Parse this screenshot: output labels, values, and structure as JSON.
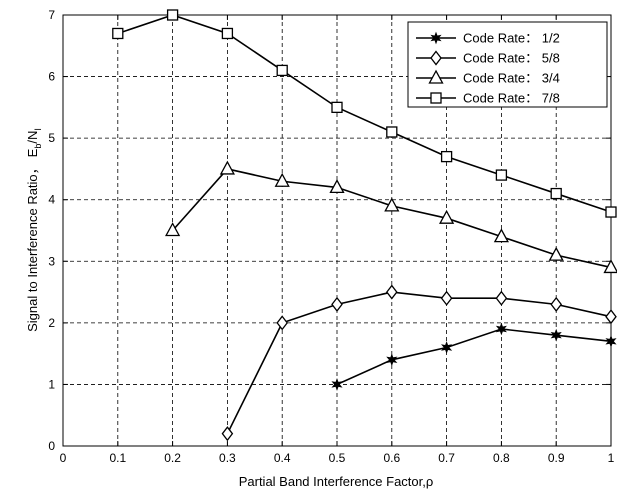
{
  "chart_data": {
    "type": "line",
    "xlabel": "Partial Band Interference Factor,ρ",
    "ylabel_main": "Signal to Interference Ratio，",
    "ylabel_symbol": {
      "E": "E",
      "b": "b",
      "slash_N": "/N",
      "I": "I"
    },
    "xlim": [
      0,
      1
    ],
    "ylim": [
      0,
      7
    ],
    "xticks": [
      "0",
      "0.1",
      "0.2",
      "0.3",
      "0.4",
      "0.5",
      "0.6",
      "0.7",
      "0.8",
      "0.9",
      "1"
    ],
    "yticks": [
      "0",
      "1",
      "2",
      "3",
      "4",
      "5",
      "6",
      "7"
    ],
    "grid": true,
    "legend_position": "top-right",
    "colors": {
      "line": "#000000",
      "grid": "#000000",
      "background": "#ffffff"
    },
    "series": [
      {
        "name": "Code Rate： 1/2",
        "marker": "star",
        "x": [
          0.5,
          0.6,
          0.7,
          0.8,
          0.9,
          1.0
        ],
        "y": [
          1.0,
          1.4,
          1.6,
          1.9,
          1.8,
          1.7
        ]
      },
      {
        "name": "Code Rate： 5/8",
        "marker": "diamond",
        "x": [
          0.3,
          0.4,
          0.5,
          0.6,
          0.7,
          0.8,
          0.9,
          1.0
        ],
        "y": [
          0.2,
          2.0,
          2.3,
          2.5,
          2.4,
          2.4,
          2.3,
          2.1
        ]
      },
      {
        "name": "Code Rate： 3/4",
        "marker": "triangle",
        "x": [
          0.2,
          0.3,
          0.4,
          0.5,
          0.6,
          0.7,
          0.8,
          0.9,
          1.0
        ],
        "y": [
          3.5,
          4.5,
          4.3,
          4.2,
          3.9,
          3.7,
          3.4,
          3.1,
          2.9
        ]
      },
      {
        "name": "Code Rate： 7/8",
        "marker": "square",
        "x": [
          0.1,
          0.2,
          0.3,
          0.4,
          0.5,
          0.6,
          0.7,
          0.8,
          0.9,
          1.0
        ],
        "y": [
          6.7,
          7.0,
          6.7,
          6.1,
          5.5,
          5.1,
          4.7,
          4.4,
          4.1,
          3.8
        ]
      }
    ]
  }
}
